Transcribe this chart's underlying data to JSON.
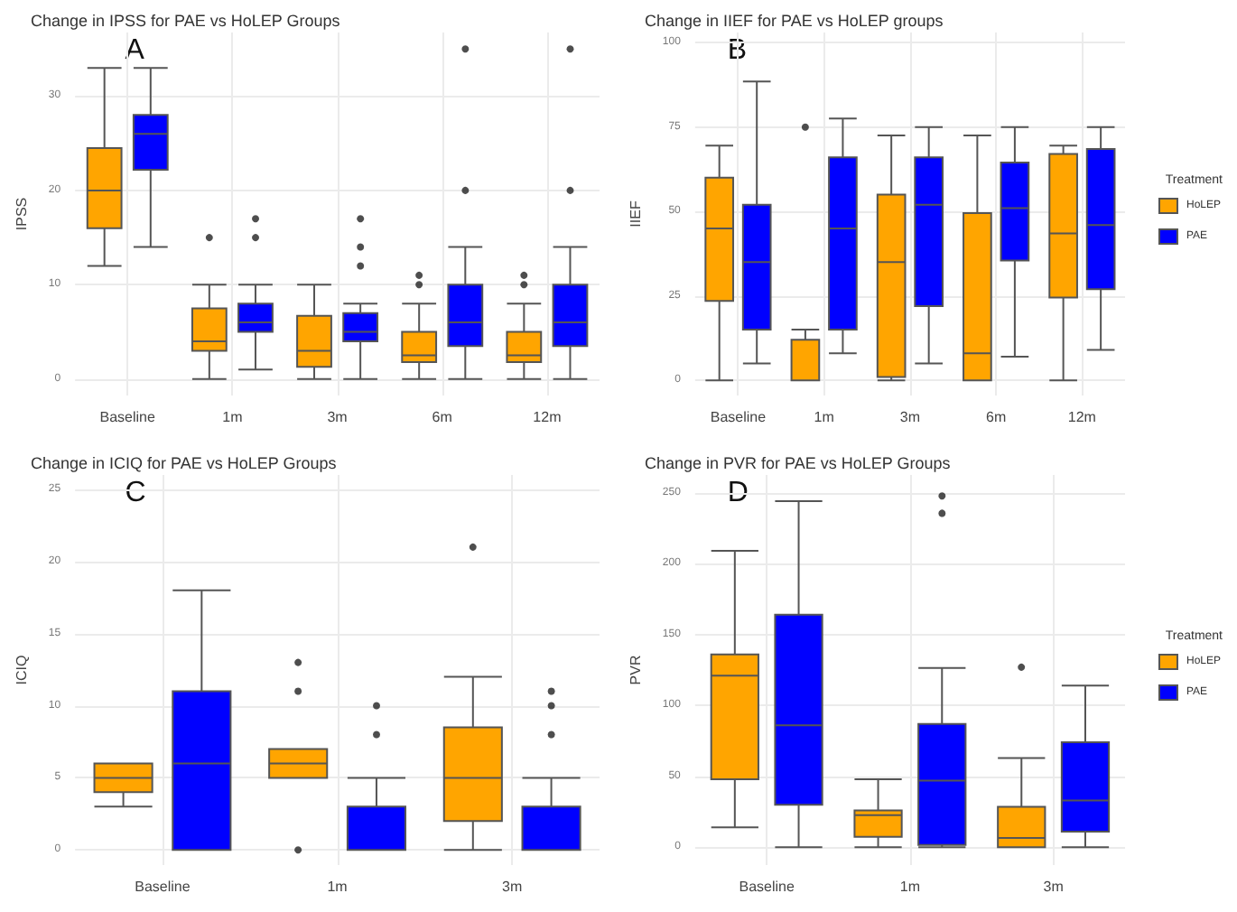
{
  "chart_data": [
    {
      "type": "box",
      "title": "Change in IPSS for PAE vs HoLEP Groups",
      "ylabel": "IPSS",
      "annotations": [
        "A"
      ],
      "categories": [
        "Baseline",
        "1m",
        "3m",
        "6m",
        "12m"
      ],
      "ylim": [
        -1.75,
        36.75
      ],
      "yticks": [
        0,
        10,
        20,
        30
      ],
      "grid": true,
      "legend": false,
      "series": [
        {
          "color": "#ffa500",
          "boxes": [
            {
              "low": 12,
              "q1": 16,
              "median": 20,
              "q3": 24.5,
              "high": 33
            },
            {
              "low": 0,
              "q1": 3,
              "median": 4,
              "q3": 7.5,
              "high": 10,
              "outliers": [
                15
              ]
            },
            {
              "low": 0,
              "q1": 1.3,
              "median": 3,
              "q3": 6.7,
              "high": 10
            },
            {
              "low": 0,
              "q1": 1.8,
              "median": 2.5,
              "q3": 5,
              "high": 8,
              "outliers": [
                10,
                11
              ]
            },
            {
              "low": 0,
              "q1": 1.8,
              "median": 2.5,
              "q3": 5,
              "high": 8,
              "outliers": [
                10,
                11
              ]
            }
          ]
        },
        {
          "color": "#0000ff",
          "boxes": [
            {
              "low": 14,
              "q1": 22.2,
              "median": 26,
              "q3": 28,
              "high": 33
            },
            {
              "low": 1,
              "q1": 5,
              "median": 6,
              "q3": 8,
              "high": 10,
              "outliers": [
                15,
                17
              ]
            },
            {
              "low": 0,
              "q1": 4,
              "median": 5,
              "q3": 7,
              "high": 8,
              "outliers": [
                12,
                14,
                17
              ]
            },
            {
              "low": 0,
              "q1": 3.5,
              "median": 6,
              "q3": 10,
              "high": 14,
              "outliers": [
                20,
                35
              ]
            },
            {
              "low": 0,
              "q1": 3.5,
              "median": 6,
              "q3": 10,
              "high": 14,
              "outliers": [
                20,
                35
              ]
            }
          ]
        }
      ]
    },
    {
      "type": "box",
      "title": "Change in IIEF for PAE vs HoLEP groups",
      "ylabel": "IIEF",
      "annotations": [
        "B"
      ],
      "categories": [
        "Baseline",
        "1m",
        "3m",
        "6m",
        "12m"
      ],
      "ylim": [
        -4.5,
        103
      ],
      "yticks": [
        0,
        25,
        50,
        75,
        100
      ],
      "grid": true,
      "legend": "right",
      "legend_title": "Treatment",
      "series": [
        {
          "name": "HoLEP",
          "color": "#ffa500",
          "boxes": [
            {
              "low": 0,
              "q1": 23.5,
              "median": 45,
              "q3": 60,
              "high": 69.5
            },
            {
              "low": 0,
              "q1": 0,
              "median": 0,
              "q3": 12,
              "high": 15,
              "outliers": [
                75
              ]
            },
            {
              "low": 0,
              "q1": 1,
              "median": 35,
              "q3": 55,
              "high": 72.5
            },
            {
              "low": 0,
              "q1": 0,
              "median": 8,
              "q3": 49.5,
              "high": 72.5
            },
            {
              "low": 0,
              "q1": 24.5,
              "median": 43.5,
              "q3": 67,
              "high": 69.5
            }
          ]
        },
        {
          "name": "PAE",
          "color": "#0000ff",
          "boxes": [
            {
              "low": 5,
              "q1": 15,
              "median": 35,
              "q3": 52,
              "high": 88.5
            },
            {
              "low": 8,
              "q1": 15,
              "median": 45,
              "q3": 66,
              "high": 77.5
            },
            {
              "low": 5,
              "q1": 22,
              "median": 52,
              "q3": 66,
              "high": 75
            },
            {
              "low": 7,
              "q1": 35.5,
              "median": 51,
              "q3": 64.5,
              "high": 75
            },
            {
              "low": 9,
              "q1": 27,
              "median": 46,
              "q3": 68.5,
              "high": 75
            }
          ]
        }
      ]
    },
    {
      "type": "box",
      "title": "Change in ICIQ for PAE vs HoLEP Groups",
      "ylabel": "ICIQ",
      "annotations": [
        "C"
      ],
      "categories": [
        "Baseline",
        "1m",
        "3m"
      ],
      "ylim": [
        -1.05,
        26
      ],
      "yticks": [
        0,
        5,
        10,
        15,
        20,
        25
      ],
      "grid": true,
      "legend": false,
      "series": [
        {
          "color": "#ffa500",
          "boxes": [
            {
              "low": 3,
              "q1": 4,
              "median": 5,
              "q3": 6,
              "high": 6
            },
            {
              "low": 5,
              "q1": 5,
              "median": 6,
              "q3": 7,
              "high": 7,
              "outliers": [
                0,
                11,
                13
              ]
            },
            {
              "low": 0,
              "q1": 2,
              "median": 5,
              "q3": 8.5,
              "high": 12,
              "outliers": [
                21
              ]
            }
          ]
        },
        {
          "color": "#0000ff",
          "boxes": [
            {
              "low": 0,
              "q1": 0,
              "median": 6,
              "q3": 11,
              "high": 18
            },
            {
              "low": 0,
              "q1": 0,
              "median": 0,
              "q3": 3,
              "high": 5,
              "outliers": [
                8,
                10
              ]
            },
            {
              "low": 0,
              "q1": 0,
              "median": 0,
              "q3": 3,
              "high": 5,
              "outliers": [
                8,
                10,
                11
              ]
            }
          ]
        }
      ]
    },
    {
      "type": "box",
      "title": "Change in PVR for PAE vs HoLEP Groups",
      "ylabel": "PVR",
      "annotations": [
        "D"
      ],
      "categories": [
        "Baseline",
        "1m",
        "3m"
      ],
      "ylim": [
        -12.5,
        262.5
      ],
      "yticks": [
        0,
        50,
        100,
        150,
        200,
        250
      ],
      "grid": true,
      "legend": "right",
      "legend_title": "Treatment",
      "series": [
        {
          "name": "HoLEP",
          "color": "#ffa500",
          "boxes": [
            {
              "low": 14,
              "q1": 48,
              "median": 121,
              "q3": 136,
              "high": 209
            },
            {
              "low": 0,
              "q1": 7.4,
              "median": 22.7,
              "q3": 26,
              "high": 48
            },
            {
              "low": 0,
              "q1": 0,
              "median": 6.6,
              "q3": 28.5,
              "high": 63,
              "outliers": [
                127
              ]
            }
          ]
        },
        {
          "name": "PAE",
          "color": "#0000ff",
          "boxes": [
            {
              "low": 0,
              "q1": 30,
              "median": 86,
              "q3": 164,
              "high": 244
            },
            {
              "low": 0,
              "q1": 1.6,
              "median": 47,
              "q3": 87,
              "high": 126.5,
              "outliers": [
                235.5,
                247.7
              ]
            },
            {
              "low": 0,
              "q1": 11,
              "median": 33,
              "q3": 74,
              "high": 114
            }
          ]
        }
      ]
    }
  ]
}
